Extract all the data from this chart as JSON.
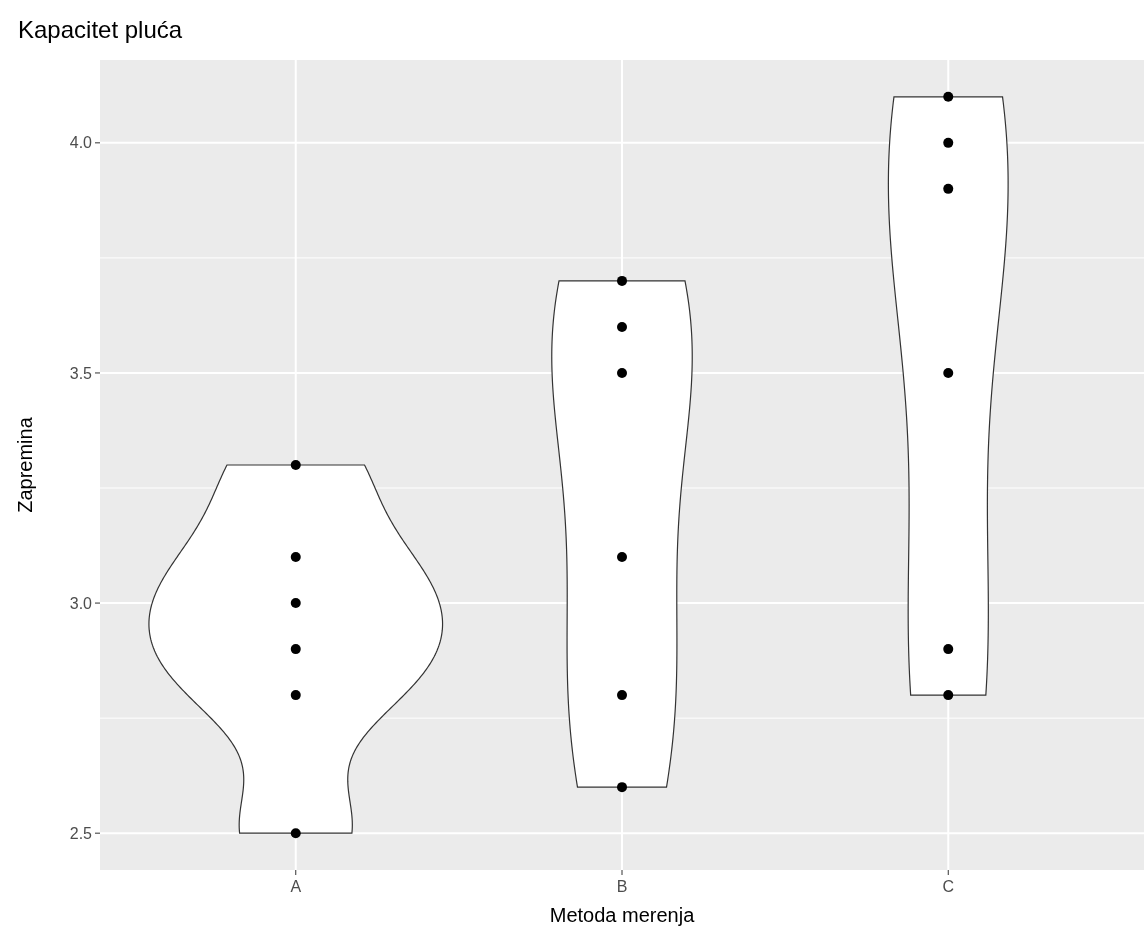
{
  "chart_data": {
    "type": "scatter",
    "title": "Kapacitet pluća",
    "xlabel": "Metoda merenja",
    "ylabel": "Zapremina",
    "categories": [
      "A",
      "B",
      "C"
    ],
    "series": [
      {
        "type": "scatter",
        "color": "#000000",
        "x": [
          "A",
          "A",
          "A",
          "A",
          "A",
          "A",
          "B",
          "B",
          "B",
          "B",
          "B",
          "B",
          "C",
          "C",
          "C",
          "C",
          "C",
          "C"
        ],
        "values": [
          2.5,
          2.8,
          2.9,
          3.0,
          3.1,
          3.3,
          2.6,
          2.8,
          3.1,
          3.5,
          3.6,
          3.7,
          2.8,
          2.9,
          3.5,
          3.9,
          4.0,
          4.1
        ]
      }
    ],
    "ylim": [
      2.42,
      4.18
    ],
    "yticks": [
      {
        "value": 2.5,
        "label": "2.5"
      },
      {
        "value": 3,
        "label": "3.0"
      },
      {
        "value": 3.5,
        "label": "3.5"
      },
      {
        "value": 4,
        "label": "4.0"
      }
    ],
    "grid": true,
    "marker": "circle"
  }
}
